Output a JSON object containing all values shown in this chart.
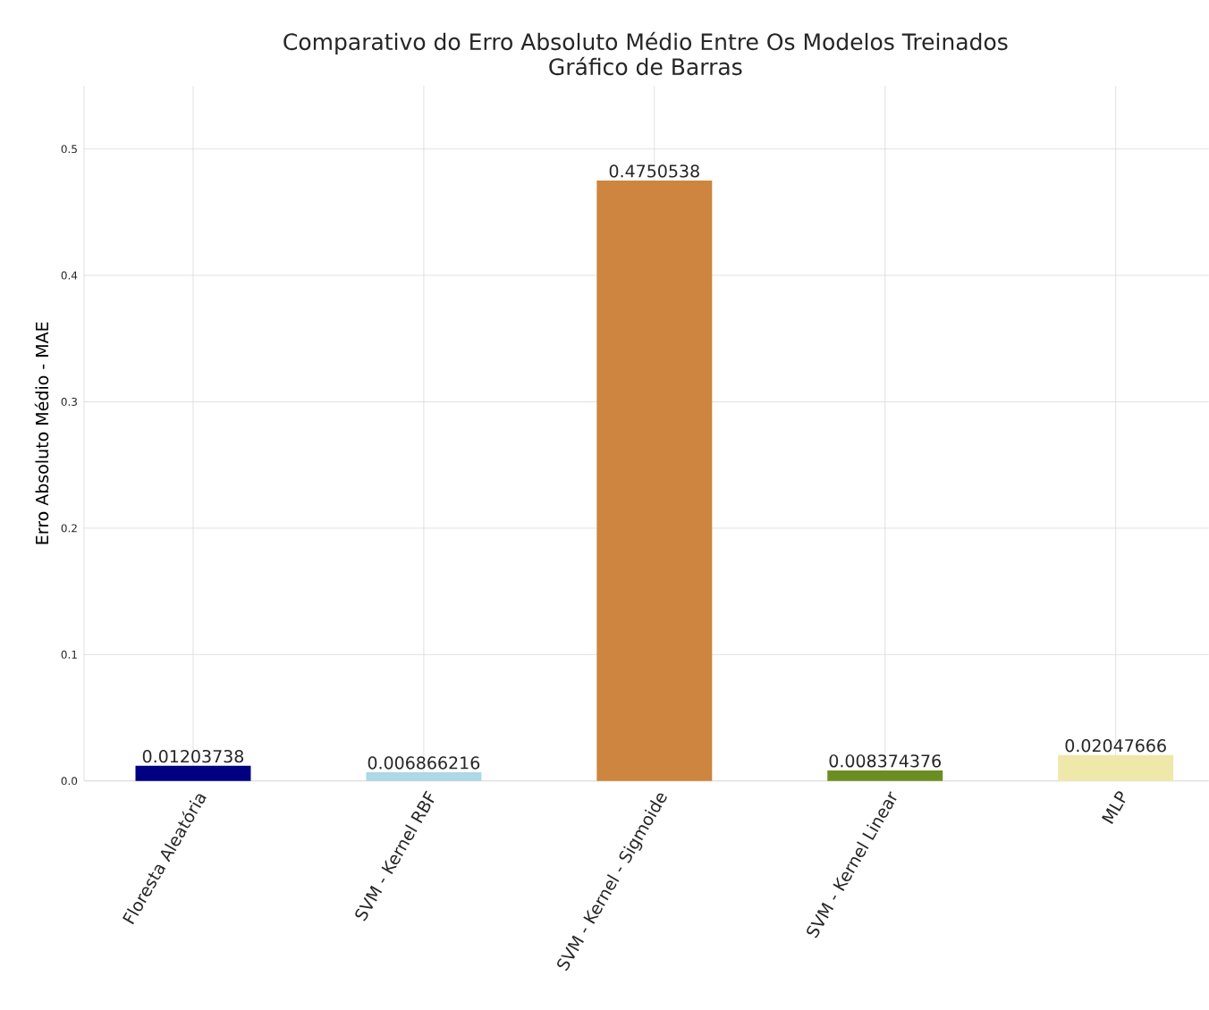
{
  "chart_data": {
    "type": "bar",
    "title": "Comparativo do Erro Absoluto Médio Entre Os Modelos Treinados",
    "subtitle": "Gráfico de Barras",
    "ylabel": "Erro Absoluto Médio - MAE",
    "categories": [
      "Floresta Aleatória",
      "SVM - Kernel RBF",
      "SVM - Kernel - Sigmoide",
      "SVM - Kernel Linear",
      "MLP"
    ],
    "values": [
      0.01203738,
      0.006866216,
      0.4750538,
      0.008374376,
      0.02047666
    ],
    "colors": [
      "#000080",
      "#add8e6",
      "#cd853f",
      "#6b8e23",
      "#eee8aa"
    ],
    "ylim": [
      0,
      0.55
    ],
    "yticks": [
      {
        "value": 0,
        "label": "0.0"
      },
      0.1,
      0.2,
      0.3,
      0.4,
      0.5
    ],
    "grid": true,
    "data_labels": true
  }
}
